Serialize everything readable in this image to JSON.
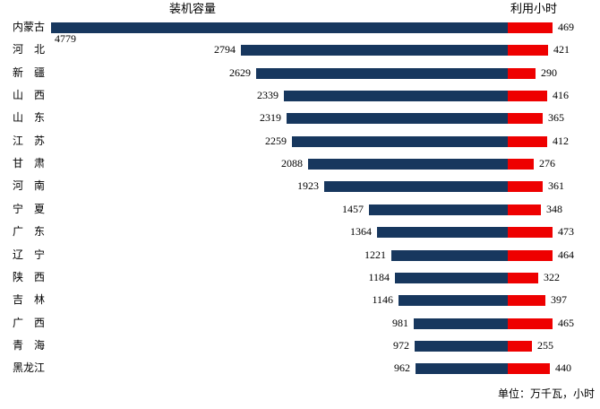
{
  "header": {
    "left_title": "装机容量",
    "right_title": "利用小时"
  },
  "footer": {
    "unit_note": "单位：万千瓦，小时"
  },
  "colors": {
    "capacity_bar": "#17375E",
    "hours_bar": "#EE0000",
    "text": "#000000",
    "background": "#FFFFFF"
  },
  "chart_data": {
    "type": "bar",
    "orientation": "horizontal",
    "layout_hint": "tornado: capacity bars right-aligned to center pivot, hours bars extend right of pivot; value labels beside bar ends",
    "title": "",
    "xlabel": "",
    "ylabel": "",
    "legend_position": "column headers (装机容量 left, 利用小时 right)",
    "grid": false,
    "unit_note": "单位：万千瓦，小时",
    "categories": [
      "内蒙古",
      "河北",
      "新疆",
      "山西",
      "山东",
      "江苏",
      "甘肃",
      "河南",
      "宁夏",
      "广东",
      "辽宁",
      "陕西",
      "吉林",
      "广西",
      "青海",
      "黑龙江"
    ],
    "series": [
      {
        "name": "装机容量",
        "unit": "万千瓦",
        "color": "#17375E",
        "values": [
          4779,
          2794,
          2629,
          2339,
          2319,
          2259,
          2088,
          1923,
          1457,
          1364,
          1221,
          1184,
          1146,
          981,
          972,
          962
        ]
      },
      {
        "name": "利用小时",
        "unit": "小时",
        "color": "#EE0000",
        "values": [
          469,
          421,
          290,
          416,
          365,
          412,
          276,
          361,
          348,
          473,
          464,
          322,
          397,
          465,
          255,
          440
        ]
      }
    ]
  }
}
